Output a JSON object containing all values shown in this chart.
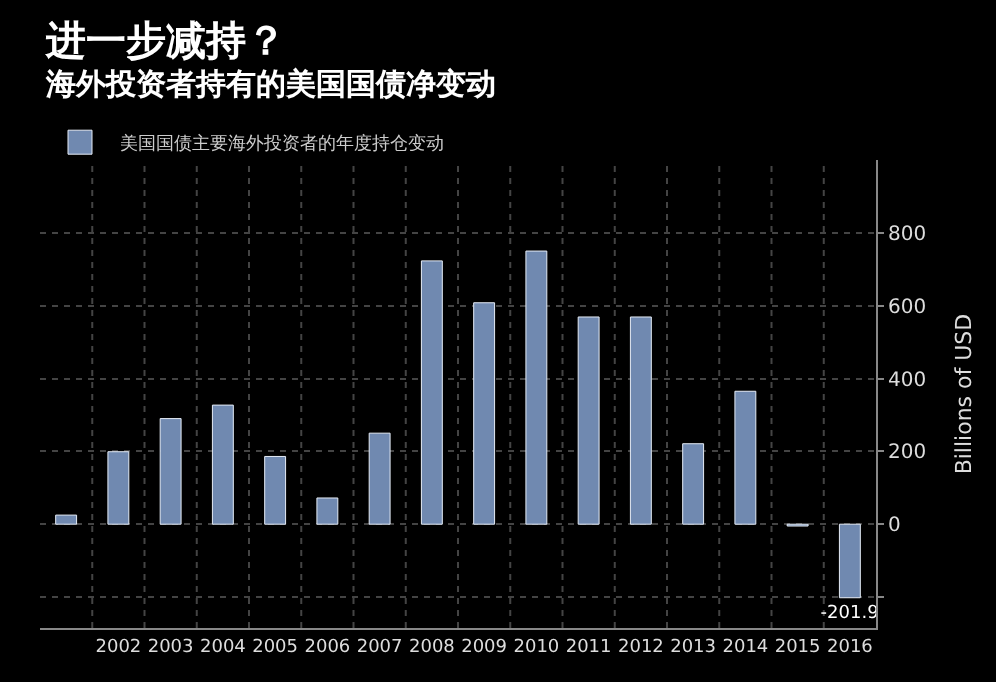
{
  "chart_data": {
    "type": "bar",
    "title": "进一步减持？",
    "subtitle": "海外投资者持有的美国国债净变动",
    "ylabel": "Billions of USD",
    "categories": [
      null,
      "2002",
      "2003",
      "2004",
      "2005",
      "2006",
      "2007",
      "2008",
      "2009",
      "2010",
      "2011",
      "2012",
      "2013",
      "2014",
      "2015",
      "2016"
    ],
    "series": [
      {
        "name": "美国国债主要海外投资者的年度持仓变动",
        "color": "#7089b0",
        "values": [
          25,
          199,
          290,
          327,
          186,
          72,
          250,
          723,
          608,
          750,
          569,
          569,
          221,
          365,
          -5,
          -201.9
        ],
        "value_labels": [
          null,
          null,
          null,
          null,
          null,
          null,
          null,
          null,
          null,
          null,
          null,
          null,
          null,
          null,
          null,
          "-201.9"
        ]
      }
    ],
    "ylim": [
      -285,
      1000
    ],
    "yticks": [
      {
        "value": -200,
        "label": null
      },
      0,
      200,
      400,
      600,
      800
    ],
    "grid": true,
    "legend": "top left"
  }
}
